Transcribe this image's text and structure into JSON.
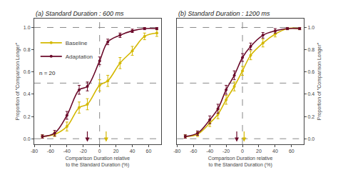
{
  "chart_data": [
    {
      "type": "line",
      "title": "(a) Standard Duration : 600 ms",
      "xlabel": "Comparison Duration relative to the Standard Duration (%)",
      "ylabel": "Proportion of \"Comparison Longer\"",
      "series": [
        {
          "name": "Baseline",
          "color": "#d4b800",
          "x": [
            -70,
            -55,
            -40,
            -25,
            -15,
            0,
            10,
            25,
            40,
            55,
            70
          ],
          "values": [
            0.02,
            0.04,
            0.11,
            0.28,
            0.31,
            0.48,
            0.52,
            0.68,
            0.79,
            0.92,
            0.95
          ],
          "errors": [
            0.015,
            0.02,
            0.04,
            0.05,
            0.05,
            0.05,
            0.05,
            0.05,
            0.04,
            0.03,
            0.03
          ],
          "pse_x": 8
        },
        {
          "name": "Adaptation",
          "color": "#6b0a2a",
          "x": [
            -70,
            -55,
            -40,
            -25,
            -15,
            0,
            10,
            25,
            40,
            55,
            70
          ],
          "values": [
            0.02,
            0.05,
            0.21,
            0.44,
            0.47,
            0.7,
            0.87,
            0.93,
            0.97,
            0.99,
            0.99
          ],
          "errors": [
            0.015,
            0.025,
            0.035,
            0.04,
            0.04,
            0.035,
            0.025,
            0.02,
            0.015,
            0.01,
            0.01
          ],
          "pse_x": -15
        }
      ],
      "annotations": [
        {
          "text": "n = 20"
        }
      ],
      "xlim": [
        -80,
        75
      ],
      "ylim": [
        -0.05,
        1.08
      ],
      "xticks": [
        -80,
        -60,
        -40,
        -20,
        0,
        20,
        40,
        60
      ],
      "yticks": [
        {
          "value": 0.0,
          "label": "0.0"
        },
        0.2,
        0.4,
        0.6,
        0.8,
        {
          "value": 1.0,
          "label": "1.0"
        }
      ],
      "vlines": [
        0
      ],
      "hlines": [
        0.0,
        0.5,
        1.0
      ],
      "grid": false,
      "legend": "upper left"
    },
    {
      "type": "line",
      "title": "(b) Standard Duration : 1200 ms",
      "xlabel": "Comparison Duration relative to the Standard Duration (%)",
      "ylabel": "Proportion of \"Comparison Longer\"",
      "series": [
        {
          "name": "Baseline",
          "color": "#d4b800",
          "x": [
            -70,
            -55,
            -40,
            -30,
            -20,
            -10,
            0,
            10,
            25,
            40,
            55,
            70
          ],
          "values": [
            0.02,
            0.04,
            0.14,
            0.22,
            0.35,
            0.47,
            0.61,
            0.75,
            0.86,
            0.94,
            0.99,
            0.99
          ],
          "errors": [
            0.015,
            0.02,
            0.03,
            0.04,
            0.04,
            0.04,
            0.04,
            0.04,
            0.035,
            0.025,
            0.01,
            0.01
          ],
          "pse_x": 2
        },
        {
          "name": "Adaptation",
          "color": "#6b0a2a",
          "x": [
            -70,
            -55,
            -40,
            -30,
            -20,
            -10,
            0,
            10,
            25,
            40,
            55,
            70
          ],
          "values": [
            0.02,
            0.05,
            0.17,
            0.27,
            0.44,
            0.57,
            0.73,
            0.83,
            0.93,
            0.97,
            0.99,
            0.99
          ],
          "errors": [
            0.015,
            0.02,
            0.035,
            0.04,
            0.04,
            0.04,
            0.035,
            0.03,
            0.025,
            0.02,
            0.01,
            0.01
          ],
          "pse_x": -7
        }
      ],
      "xlim": [
        -80,
        75
      ],
      "ylim": [
        -0.05,
        1.08
      ],
      "xticks": [
        -80,
        -60,
        -40,
        -20,
        0,
        20,
        40,
        60
      ],
      "yticks": [
        {
          "value": 0.0,
          "label": "0.0"
        },
        0.2,
        0.4,
        0.6,
        0.8,
        {
          "value": 1.0,
          "label": "1.0"
        }
      ],
      "vlines": [
        0
      ],
      "hlines": [
        0.0,
        0.5,
        1.0
      ],
      "grid": false
    }
  ]
}
